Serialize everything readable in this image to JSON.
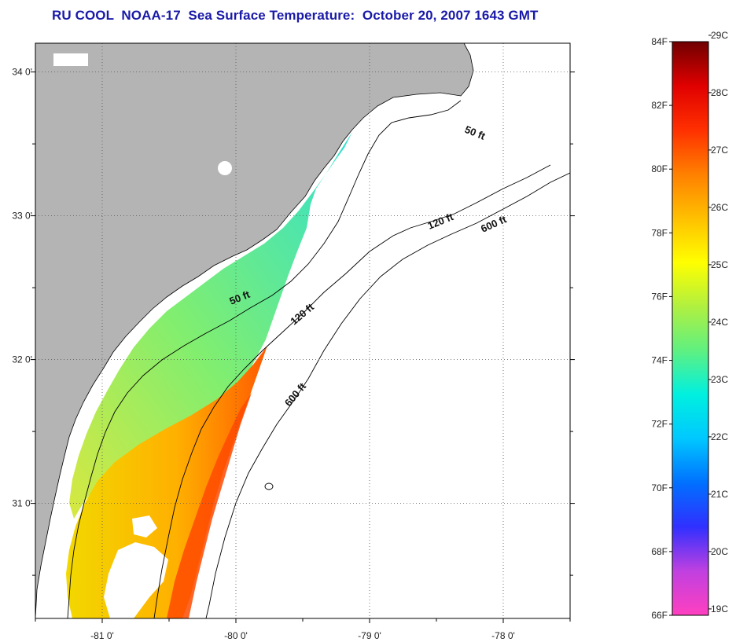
{
  "title": "RU COOL  NOAA-17  Sea Surface Temperature:  October 20, 2007 1643 GMT",
  "map": {
    "lon_ticks": [
      "-81 0'",
      "-80 0'",
      "-79 0'",
      "-78 0'"
    ],
    "lat_ticks": [
      "34 0'",
      "33 0'",
      "32 0'",
      "31 0'"
    ],
    "lon_values": [
      -81,
      -80,
      -79,
      -78
    ],
    "lat_values": [
      34,
      33,
      32,
      31
    ],
    "lon_range": [
      -81.5,
      -77.5
    ],
    "lat_range": [
      30.2,
      34.2
    ],
    "contour_labels": [
      {
        "text": "50 ft",
        "depth_ft": 50
      },
      {
        "text": "120 ft",
        "depth_ft": 120
      },
      {
        "text": "600 ft",
        "depth_ft": 600
      },
      {
        "text": "50 ft",
        "depth_ft": 50
      },
      {
        "text": "120 ft",
        "depth_ft": 120
      },
      {
        "text": "600 ft",
        "depth_ft": 600
      }
    ],
    "land_color": "#b4b4b4",
    "no_data_color": "#ffffff"
  },
  "colorbar": {
    "f_labels": [
      "84F",
      "82F",
      "80F",
      "78F",
      "76F",
      "74F",
      "72F",
      "70F",
      "68F",
      "66F"
    ],
    "c_labels": [
      "29C",
      "28C",
      "27C",
      "26C",
      "25C",
      "24C",
      "23C",
      "22C",
      "21C",
      "20C",
      "19C"
    ],
    "range_f": [
      66,
      84
    ],
    "stops": [
      "#ff40c0",
      "#c040e0",
      "#3030ff",
      "#0070ff",
      "#00c8ff",
      "#00f0e0",
      "#60f080",
      "#b0f040",
      "#ffff00",
      "#ffc000",
      "#ff8000",
      "#ff3000",
      "#e00000",
      "#700000"
    ]
  }
}
